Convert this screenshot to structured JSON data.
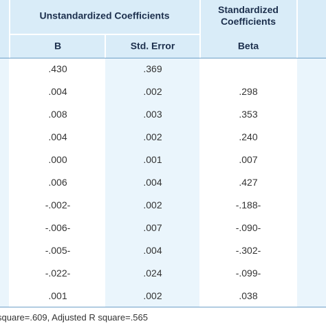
{
  "table": {
    "header": {
      "group_unstandardized": "Unstandardized Coefficients",
      "group_standardized": "Standardized Coefficients",
      "columns": [
        "B",
        "Std. Error",
        "Beta"
      ]
    },
    "rows": [
      [
        ".430",
        ".369"
      ],
      [
        ".004",
        ".002",
        ".298"
      ],
      [
        ".008",
        ".003",
        ".353"
      ],
      [
        ".004",
        ".002",
        ".240"
      ],
      [
        ".000",
        ".001",
        ".007"
      ],
      [
        ".006",
        ".004",
        ".427"
      ],
      [
        "-.002-",
        ".002",
        "-.188-"
      ],
      [
        "-.006-",
        ".007",
        "-.090-"
      ],
      [
        "-.005-",
        ".004",
        "-.302-"
      ],
      [
        "-.022-",
        ".024",
        "-.099-"
      ],
      [
        ".001",
        ".002",
        ".038"
      ]
    ],
    "note": "square=.609, Adjusted R square=.565"
  }
}
